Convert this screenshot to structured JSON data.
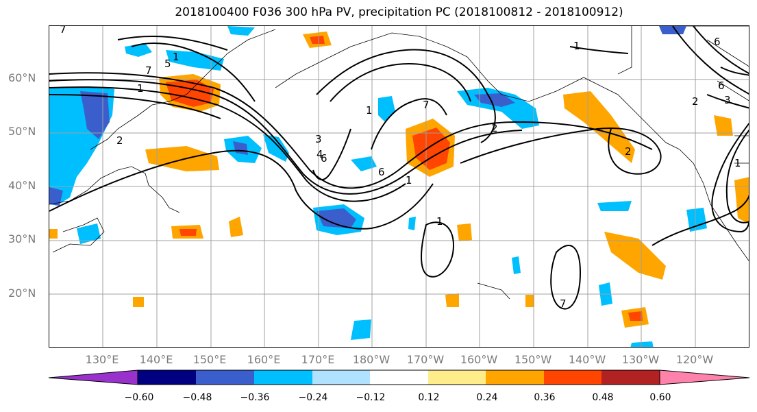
{
  "title": "2018100400 F036 300 hPa PV, precipitation PC (2018100812 - 2018100912)",
  "lat_labels": [
    "60°N",
    "50°N",
    "40°N",
    "30°N",
    "20°N"
  ],
  "lon_labels": [
    "130°E",
    "140°E",
    "150°E",
    "160°E",
    "170°E",
    "180°W",
    "170°W",
    "160°W",
    "150°W",
    "140°W",
    "130°W",
    "120°W"
  ],
  "colorbar": {
    "ticks": [
      "−0.60",
      "−0.48",
      "−0.36",
      "−0.24",
      "−0.12",
      "0.12",
      "0.24",
      "0.36",
      "0.48",
      "0.60"
    ],
    "colors": [
      "#9932cc",
      "#000080",
      "#3a5fcd",
      "#00bfff",
      "#b0e2ff",
      "#ffffff",
      "#ffec8b",
      "#ffa500",
      "#ff4500",
      "#b22222",
      "#ff82ab"
    ]
  },
  "contour_labels": [
    "1",
    "1",
    "2",
    "3",
    "4",
    "5",
    "6",
    "7",
    "1",
    "2",
    "6",
    "1",
    "2",
    "7",
    "1",
    "6",
    "1",
    "7",
    "2",
    "6",
    "3",
    "1",
    "7"
  ]
}
